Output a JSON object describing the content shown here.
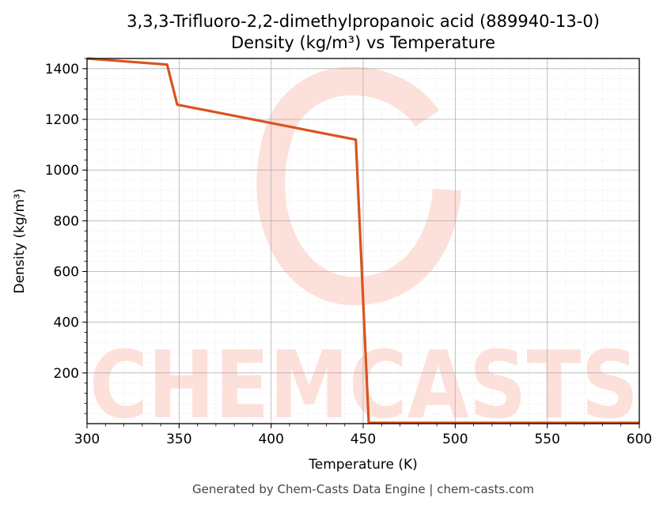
{
  "chart_data": {
    "type": "line",
    "title": "3,3,3-Trifluoro-2,2-dimethylpropanoic acid (889940-13-0)",
    "subtitle": "Density (kg/m³) vs Temperature",
    "xlabel": "Temperature (K)",
    "ylabel": "Density (kg/m³)",
    "xlim": [
      300,
      600
    ],
    "ylim": [
      0,
      1440
    ],
    "xticks": [
      300,
      350,
      400,
      450,
      500,
      550,
      600
    ],
    "yticks": [
      200,
      400,
      600,
      800,
      1000,
      1200,
      1400
    ],
    "grid": true,
    "series": [
      {
        "color": "#d9541e",
        "x": [
          300,
          343.5,
          349,
          446,
          453,
          453.5,
          600
        ],
        "y": [
          1440,
          1416,
          1258,
          1120,
          5,
          3,
          3
        ]
      }
    ]
  },
  "watermark": {
    "text": "CHEMCASTS",
    "color": "#fde0da"
  },
  "footer": "Generated by Chem-Casts Data Engine | chem-casts.com"
}
